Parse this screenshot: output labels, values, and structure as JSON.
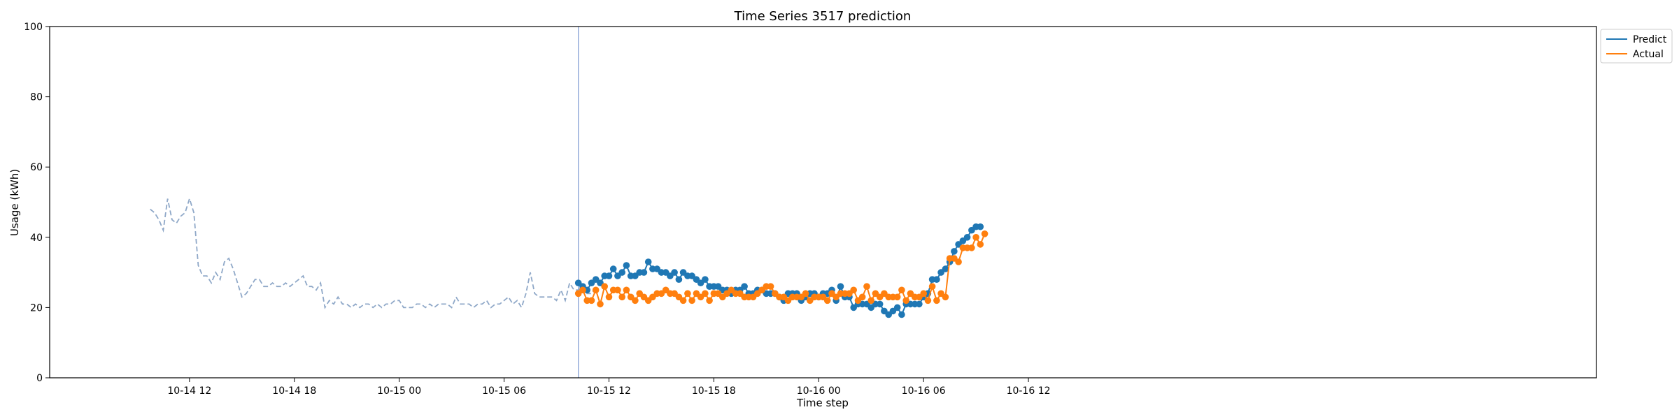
{
  "chart_data": {
    "type": "line",
    "title": "Time Series 3517 prediction",
    "xlabel": "Time step",
    "ylabel": "Usage (kWh)",
    "ylim": [
      0,
      100
    ],
    "xlim_hours": [
      -8.0,
      80.5
    ],
    "yticks": [
      0,
      20,
      40,
      60,
      80,
      100
    ],
    "xticks": [
      {
        "label": "10-14 12",
        "t": 0
      },
      {
        "label": "10-14 18",
        "t": 6
      },
      {
        "label": "10-15 00",
        "t": 12
      },
      {
        "label": "10-15 06",
        "t": 18
      },
      {
        "label": "10-15 12",
        "t": 24
      },
      {
        "label": "10-15 18",
        "t": 30
      },
      {
        "label": "10-16 00",
        "t": 36
      },
      {
        "label": "10-16 06",
        "t": 42
      },
      {
        "label": "10-16 12",
        "t": 48
      }
    ],
    "forecast_start": "10-15 10:15",
    "legend": {
      "position": "top-right",
      "entries": [
        {
          "label": "Predict",
          "color": "#1f77b4"
        },
        {
          "label": "Actual",
          "color": "#ff7f0e"
        }
      ]
    },
    "colors": {
      "history": "#8fa8c8",
      "predict": "#1f77b4",
      "actual": "#ff7f0e",
      "divider": "#8fa8d8"
    },
    "history": {
      "start": "10-14 09:45",
      "step_minutes": 15,
      "values": [
        48,
        47,
        45,
        42,
        51,
        45,
        44,
        46,
        47,
        51,
        47,
        32,
        29,
        29,
        27,
        30,
        28,
        33,
        34,
        31,
        27,
        23,
        24,
        26,
        28,
        28,
        26,
        26,
        27,
        26,
        26,
        27,
        26,
        27,
        28,
        29,
        26,
        26,
        25,
        27,
        20,
        22,
        21,
        23,
        21,
        21,
        20,
        21,
        20,
        21,
        21,
        20,
        21,
        20,
        21,
        21,
        22,
        22,
        20,
        20,
        20,
        21,
        21,
        20,
        21,
        20,
        21,
        21,
        21,
        20,
        23,
        21,
        21,
        21,
        20,
        21,
        21,
        22,
        20,
        21,
        21,
        22,
        23,
        21,
        22,
        20,
        24,
        30,
        24,
        23,
        23,
        23,
        23,
        22,
        25,
        22,
        27,
        25,
        25,
        26,
        24,
        24,
        26
      ]
    },
    "predict": {
      "start": "10-15 10:15",
      "step_minutes": 15,
      "values": [
        27,
        26,
        25,
        27,
        28,
        27,
        29,
        29,
        31,
        29,
        30,
        32,
        29,
        29,
        30,
        30,
        33,
        31,
        31,
        30,
        30,
        29,
        30,
        28,
        30,
        29,
        29,
        28,
        27,
        28,
        26,
        26,
        26,
        25,
        25,
        24,
        25,
        25,
        26,
        24,
        24,
        25,
        25,
        24,
        24,
        24,
        23,
        22,
        24,
        24,
        24,
        22,
        23,
        24,
        24,
        23,
        24,
        24,
        25,
        22,
        26,
        23,
        23,
        20,
        21,
        21,
        21,
        20,
        21,
        21,
        19,
        18,
        19,
        20,
        18,
        21,
        21,
        21,
        21,
        23,
        24,
        28,
        28,
        30,
        31,
        33,
        36,
        38,
        39,
        40,
        42,
        43,
        43
      ]
    },
    "actual": {
      "start": "10-15 10:15",
      "step_minutes": 15,
      "values": [
        24,
        25,
        22,
        22,
        25,
        21,
        26,
        23,
        25,
        25,
        23,
        25,
        23,
        22,
        24,
        23,
        22,
        23,
        24,
        24,
        25,
        24,
        24,
        23,
        22,
        24,
        22,
        24,
        23,
        24,
        22,
        24,
        24,
        23,
        24,
        25,
        24,
        24,
        23,
        23,
        23,
        24,
        25,
        26,
        26,
        24,
        23,
        23,
        22,
        23,
        23,
        23,
        24,
        22,
        23,
        23,
        23,
        22,
        24,
        23,
        24,
        24,
        24,
        25,
        22,
        23,
        26,
        22,
        24,
        23,
        24,
        23,
        23,
        23,
        25,
        22,
        24,
        23,
        23,
        24,
        22,
        26,
        22,
        24,
        23,
        34,
        34,
        33,
        37,
        37,
        37,
        40,
        38,
        41
      ]
    }
  }
}
